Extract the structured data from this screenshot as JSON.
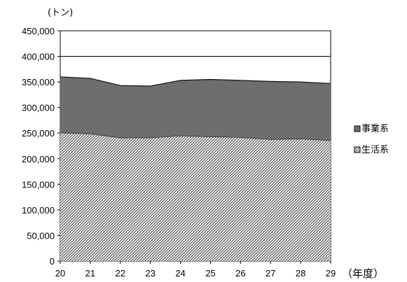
{
  "chart_data": {
    "type": "area",
    "stacked": true,
    "y_unit_label": "(トン)",
    "x_unit_label": "（年度）",
    "x": [
      "20",
      "21",
      "22",
      "23",
      "24",
      "25",
      "26",
      "27",
      "28",
      "29"
    ],
    "ylim": [
      0,
      450000
    ],
    "yticks": [
      0,
      50000,
      100000,
      150000,
      200000,
      250000,
      300000,
      350000,
      400000,
      450000
    ],
    "ytick_labels": [
      "0",
      "50,000",
      "100,000",
      "150,000",
      "200,000",
      "250,000",
      "300,000",
      "350,000",
      "400,000",
      "450,000"
    ],
    "gridlines": [
      400000
    ],
    "series": [
      {
        "name": "生活系",
        "values": [
          251000,
          249000,
          241000,
          241000,
          245000,
          243000,
          242000,
          238000,
          239000,
          236000
        ],
        "fill": "hatched",
        "color": "#555555"
      },
      {
        "name": "事業系",
        "values": [
          109000,
          108000,
          102000,
          101000,
          108000,
          112000,
          111000,
          113000,
          111000,
          111000
        ],
        "fill": "solid",
        "color": "#6e6e6e"
      }
    ],
    "legend": {
      "position": "right",
      "order": [
        "事業系",
        "生活系"
      ]
    }
  }
}
